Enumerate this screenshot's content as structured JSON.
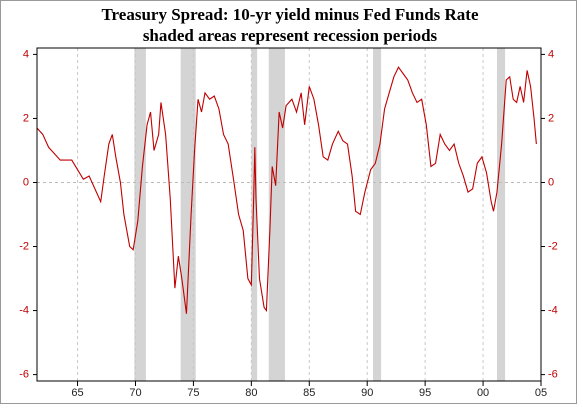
{
  "chart_data": {
    "type": "line",
    "title": "Treasury Spread:  10-yr yield minus Fed Funds Rate",
    "subtitle": "shaded areas represent recession periods",
    "color": "#c00000",
    "recession_color": "#d4d4d4",
    "recessions": [
      [
        1969.9,
        1970.9
      ],
      [
        1973.9,
        1975.2
      ],
      [
        1980.0,
        1980.5
      ],
      [
        1981.5,
        1982.9
      ],
      [
        1990.5,
        1991.2
      ],
      [
        2001.2,
        2001.9
      ]
    ],
    "x": [
      1961.5,
      1962,
      1962.5,
      1963,
      1963.5,
      1964,
      1964.5,
      1965,
      1965.5,
      1966,
      1966.5,
      1967,
      1967.3,
      1967.7,
      1968,
      1968.3,
      1968.7,
      1969,
      1969.5,
      1969.8,
      1970.2,
      1970.6,
      1971,
      1971.3,
      1971.6,
      1972,
      1972.2,
      1972.6,
      1973,
      1973.4,
      1973.7,
      1974,
      1974.4,
      1974.8,
      1975.1,
      1975.4,
      1975.7,
      1976,
      1976.4,
      1976.8,
      1977.2,
      1977.6,
      1978,
      1978.5,
      1978.9,
      1979.3,
      1979.7,
      1980.0,
      1980.2,
      1980.3,
      1980.4,
      1980.7,
      1981.1,
      1981.3,
      1981.6,
      1981.8,
      1982.1,
      1982.4,
      1982.7,
      1983,
      1983.5,
      1983.9,
      1984.3,
      1984.6,
      1985,
      1985.4,
      1985.8,
      1986.2,
      1986.6,
      1987,
      1987.5,
      1987.9,
      1988.3,
      1988.7,
      1989,
      1989.4,
      1989.8,
      1990.3,
      1990.7,
      1991.1,
      1991.5,
      1991.9,
      1992.3,
      1992.7,
      1993.1,
      1993.5,
      1993.9,
      1994.3,
      1994.7,
      1995.1,
      1995.5,
      1995.9,
      1996.3,
      1996.7,
      1997.1,
      1997.5,
      1997.9,
      1998.3,
      1998.7,
      1999.1,
      1999.5,
      1999.9,
      2000.3,
      2000.7,
      2000.9,
      2001.2,
      2001.6,
      2002.0,
      2002.3,
      2002.6,
      2002.9,
      2003.2,
      2003.5,
      2003.8,
      2004.1,
      2004.4,
      2004.6
    ],
    "values": [
      1.7,
      1.5,
      1.1,
      0.9,
      0.7,
      0.7,
      0.7,
      0.4,
      0.1,
      0.2,
      -0.2,
      -0.6,
      0.2,
      1.2,
      1.5,
      0.8,
      0.0,
      -1.0,
      -2.0,
      -2.1,
      -1.2,
      0.5,
      1.8,
      2.2,
      1.0,
      1.5,
      2.5,
      1.5,
      -0.5,
      -3.3,
      -2.3,
      -3.0,
      -4.1,
      -1.0,
      1.0,
      2.6,
      2.2,
      2.8,
      2.6,
      2.7,
      2.3,
      1.5,
      1.2,
      0.0,
      -1.0,
      -1.5,
      -3.0,
      -3.2,
      -0.5,
      1.1,
      -0.5,
      -3.0,
      -3.9,
      -4.0,
      -1.5,
      0.5,
      -0.1,
      2.2,
      1.7,
      2.4,
      2.6,
      2.2,
      2.8,
      1.8,
      3.0,
      2.6,
      1.8,
      0.8,
      0.7,
      1.2,
      1.6,
      1.3,
      1.2,
      0.2,
      -0.9,
      -1.0,
      -0.3,
      0.4,
      0.6,
      1.2,
      2.3,
      2.8,
      3.3,
      3.6,
      3.4,
      3.2,
      2.8,
      2.5,
      2.6,
      1.8,
      0.5,
      0.6,
      1.5,
      1.2,
      1.0,
      1.2,
      0.6,
      0.2,
      -0.3,
      -0.2,
      0.6,
      0.8,
      0.3,
      -0.6,
      -0.9,
      -0.3,
      1.2,
      3.2,
      3.3,
      2.6,
      2.5,
      3.0,
      2.5,
      3.5,
      3.0,
      2.0,
      1.2
    ],
    "xlim": [
      1961.5,
      2005.0
    ],
    "xticks": [
      {
        "value": 1965,
        "label": "65"
      },
      {
        "value": 1970,
        "label": "70"
      },
      {
        "value": 1975,
        "label": "75"
      },
      {
        "value": 1980,
        "label": "80"
      },
      {
        "value": 1985,
        "label": "85"
      },
      {
        "value": 1990,
        "label": "90"
      },
      {
        "value": 1995,
        "label": "95"
      },
      {
        "value": 2000,
        "label": "00"
      },
      {
        "value": 2005,
        "label": "05"
      }
    ],
    "ylim": [
      -6.2,
      4.2
    ],
    "yticks": [
      -6,
      -4,
      -2,
      0,
      2,
      4
    ],
    "y2lim": [
      -6.2,
      4.2
    ],
    "y2ticks": [
      -6,
      -4,
      -2,
      0,
      2,
      4
    ],
    "grid": true
  }
}
